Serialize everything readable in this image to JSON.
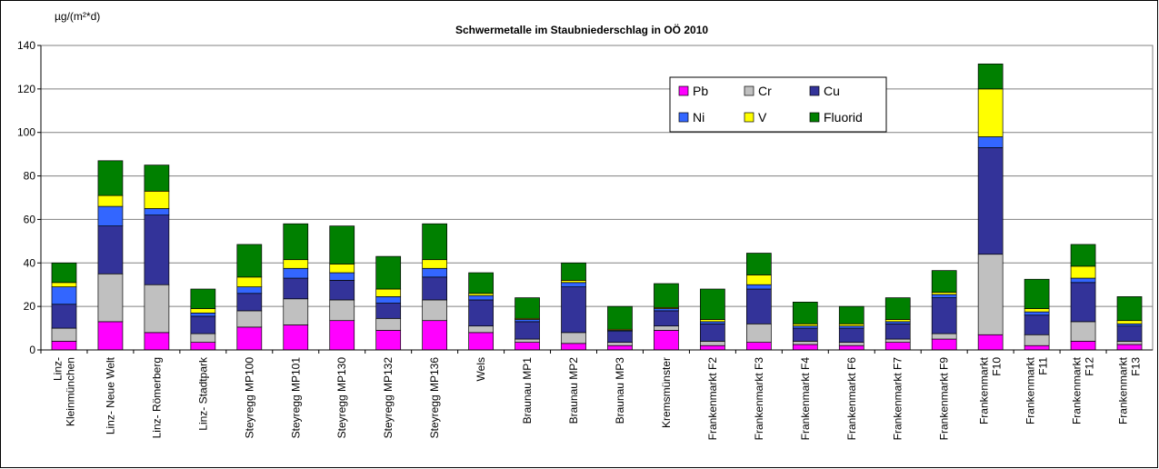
{
  "chart_data": {
    "type": "stacked-bar",
    "title": "Schwermetalle im Staubniederschlag in OÖ 2010",
    "y_label": "µg/(m²*d)",
    "categories": [
      "Linz-\nKleinmünchen",
      "Linz- Neue Welt",
      "Linz- Römerberg",
      "Linz- Stadtpark",
      "Steyregg MP100",
      "Steyregg MP101",
      "Steyregg MP130",
      "Steyregg MP132",
      "Steyregg MP136",
      "Wels",
      "Braunau MP1",
      "Braunau MP2",
      "Braunau MP3",
      "Kremsmünster",
      "Frankenmarkt F2",
      "Frankenmarkt F3",
      "Frankenmarkt F4",
      "Frankenmarkt F6",
      "Frankenmarkt F7",
      "Frankenmarkt F9",
      "Frankenmarkt\nF10",
      "Frankenmarkt\nF11",
      "Frankenmarkt\nF12",
      "Frankenmarkt\nF13"
    ],
    "series": [
      {
        "name": "Pb",
        "color": "#ff00ff",
        "values": [
          4,
          13,
          8,
          3.5,
          10.5,
          11.5,
          13.5,
          9,
          13.5,
          8,
          3.5,
          3,
          2,
          9,
          2,
          3.5,
          2.5,
          2,
          3.5,
          5,
          7,
          2,
          4,
          2.5
        ]
      },
      {
        "name": "Cr",
        "color": "#c0c0c0",
        "values": [
          6,
          22,
          22,
          4,
          7.5,
          12,
          9.5,
          5.5,
          9.5,
          3,
          1.5,
          5,
          1.5,
          2,
          2,
          8.5,
          1.5,
          1.5,
          1.5,
          2.5,
          37,
          5,
          9,
          1.5
        ]
      },
      {
        "name": "Cu",
        "color": "#333399",
        "values": [
          11,
          22,
          32,
          8,
          8,
          9.5,
          9,
          7,
          10.5,
          12,
          8,
          21,
          5,
          7,
          8,
          16,
          6,
          6.5,
          7,
          16.5,
          49,
          9,
          18,
          7
        ]
      },
      {
        "name": "Ni",
        "color": "#3366ff",
        "values": [
          8,
          9,
          3,
          1.5,
          3,
          4.5,
          3.5,
          3,
          4,
          2,
          1,
          2,
          0.5,
          1,
          1,
          2,
          1,
          1,
          1,
          1.5,
          5,
          1.5,
          2,
          1
        ]
      },
      {
        "name": "V",
        "color": "#ffff00",
        "values": [
          2,
          5,
          8,
          2,
          4.5,
          4,
          4,
          3.5,
          4,
          1,
          0.5,
          1,
          0.5,
          0.5,
          1,
          4.5,
          1,
          1,
          1,
          1,
          22,
          1.5,
          5.5,
          1.5
        ]
      },
      {
        "name": "Fluorid",
        "color": "#008000",
        "values": [
          9,
          16,
          12,
          9,
          15,
          16.5,
          17.5,
          15,
          16.5,
          9.5,
          9.5,
          8,
          10.5,
          11,
          14,
          10,
          10,
          8,
          10,
          10,
          11.5,
          13.5,
          10,
          11
        ]
      }
    ],
    "ylim": [
      0,
      140
    ],
    "yticks": [
      0,
      20,
      40,
      60,
      80,
      100,
      120,
      140
    ],
    "grid": true
  }
}
